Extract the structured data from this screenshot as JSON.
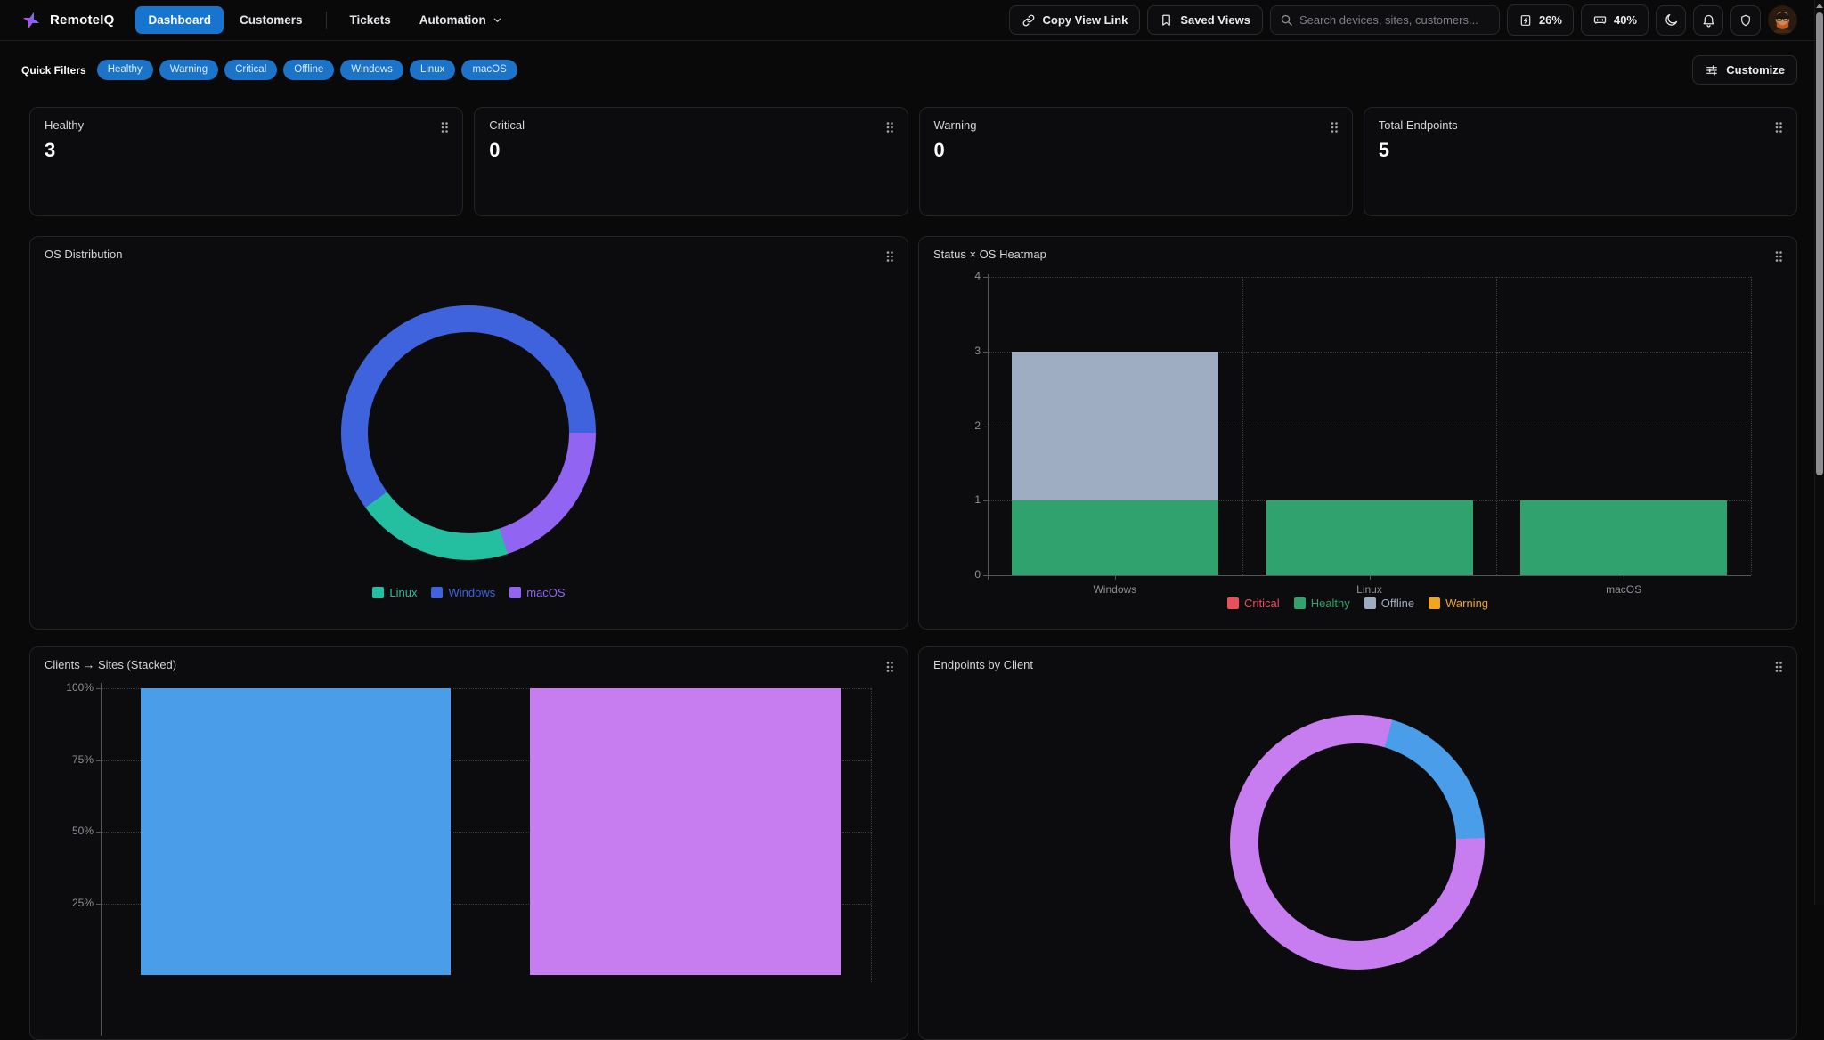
{
  "header": {
    "brand": "RemoteIQ",
    "nav": [
      {
        "label": "Dashboard",
        "active": true
      },
      {
        "label": "Customers",
        "active": false
      },
      {
        "label": "Tickets",
        "active": false
      },
      {
        "label": "Automation",
        "active": false,
        "dropdown": true
      }
    ],
    "copy_view_link_label": "Copy View Link",
    "saved_views_label": "Saved Views",
    "search_placeholder": "Search devices, sites, customers...",
    "cpu_usage": "26%",
    "memory_usage": "40%"
  },
  "filters": {
    "label": "Quick Filters",
    "chips": [
      "Healthy",
      "Warning",
      "Critical",
      "Offline",
      "Windows",
      "Linux",
      "macOS"
    ],
    "customize_label": "Customize"
  },
  "stats": [
    {
      "label": "Healthy",
      "value": "3"
    },
    {
      "label": "Critical",
      "value": "0"
    },
    {
      "label": "Warning",
      "value": "0"
    },
    {
      "label": "Total Endpoints",
      "value": "5"
    }
  ],
  "icons": {
    "sparkle-logo-icon": "four-point gradient sparkle",
    "link-icon": "chain link",
    "bookmark-icon": "bookmark outline",
    "search-icon": "magnifier",
    "cpu-icon": "square with lightning bolt",
    "memory-icon": "ram stick",
    "moon-icon": "crescent moon",
    "bell-icon": "notification bell",
    "shield-icon": "security shield",
    "user-avatar": "bearded man with glasses",
    "sliders-icon": "customize sliders",
    "drag-handle-icon": "six-dot grip",
    "chevron-down-icon": "caret down"
  },
  "theme": {
    "page_bg": "#09090a",
    "card_bg": "#0c0c0e",
    "accent_blue": "#1b74c8",
    "active_tab_blue": "#1774cf"
  },
  "chart_data": [
    {
      "id": "os-distribution",
      "type": "pie",
      "donut": true,
      "title": "OS Distribution",
      "labels": [
        "Linux",
        "Windows",
        "macOS"
      ],
      "values": [
        1,
        3,
        1
      ],
      "colors": [
        "#23bfa0",
        "#3e63dd",
        "#9164f2"
      ],
      "rotation_deg": 90,
      "draw_order": [
        2,
        0,
        1
      ],
      "legend_position": "bottom"
    },
    {
      "id": "status-os-heatmap",
      "type": "bar",
      "stacked": true,
      "title": "Status × OS Heatmap",
      "categories": [
        "Windows",
        "Linux",
        "macOS"
      ],
      "series": [
        {
          "name": "Critical",
          "color": "#e8505b",
          "values": [
            0,
            0,
            0
          ]
        },
        {
          "name": "Healthy",
          "color": "#2fa26d",
          "values": [
            1,
            1,
            1
          ]
        },
        {
          "name": "Offline",
          "color": "#9fadc2",
          "values": [
            2,
            0,
            0
          ]
        },
        {
          "name": "Warning",
          "color": "#f0a51c",
          "values": [
            0,
            0,
            0
          ]
        }
      ],
      "ylim": [
        0,
        4
      ],
      "yticks": [
        0,
        1,
        2,
        3,
        4
      ],
      "grid": "dotted",
      "legend_position": "bottom"
    },
    {
      "id": "clients-sites-stacked",
      "type": "bar",
      "stacked": true,
      "percent_axis": true,
      "title": "Clients → Sites (Stacked)",
      "yticks": [
        "100%",
        "75%",
        "50%",
        "25%"
      ],
      "values": [
        100,
        100
      ],
      "colors": [
        "#4a9de8",
        "#c77cf0"
      ],
      "grid": "dotted"
    },
    {
      "id": "endpoints-by-client",
      "type": "pie",
      "donut": true,
      "title": "Endpoints by Client",
      "values": [
        1,
        4
      ],
      "colors": [
        "#4a9de8",
        "#c77cf0"
      ],
      "rotation_deg": 16,
      "draw_order": [
        0,
        1
      ]
    }
  ]
}
